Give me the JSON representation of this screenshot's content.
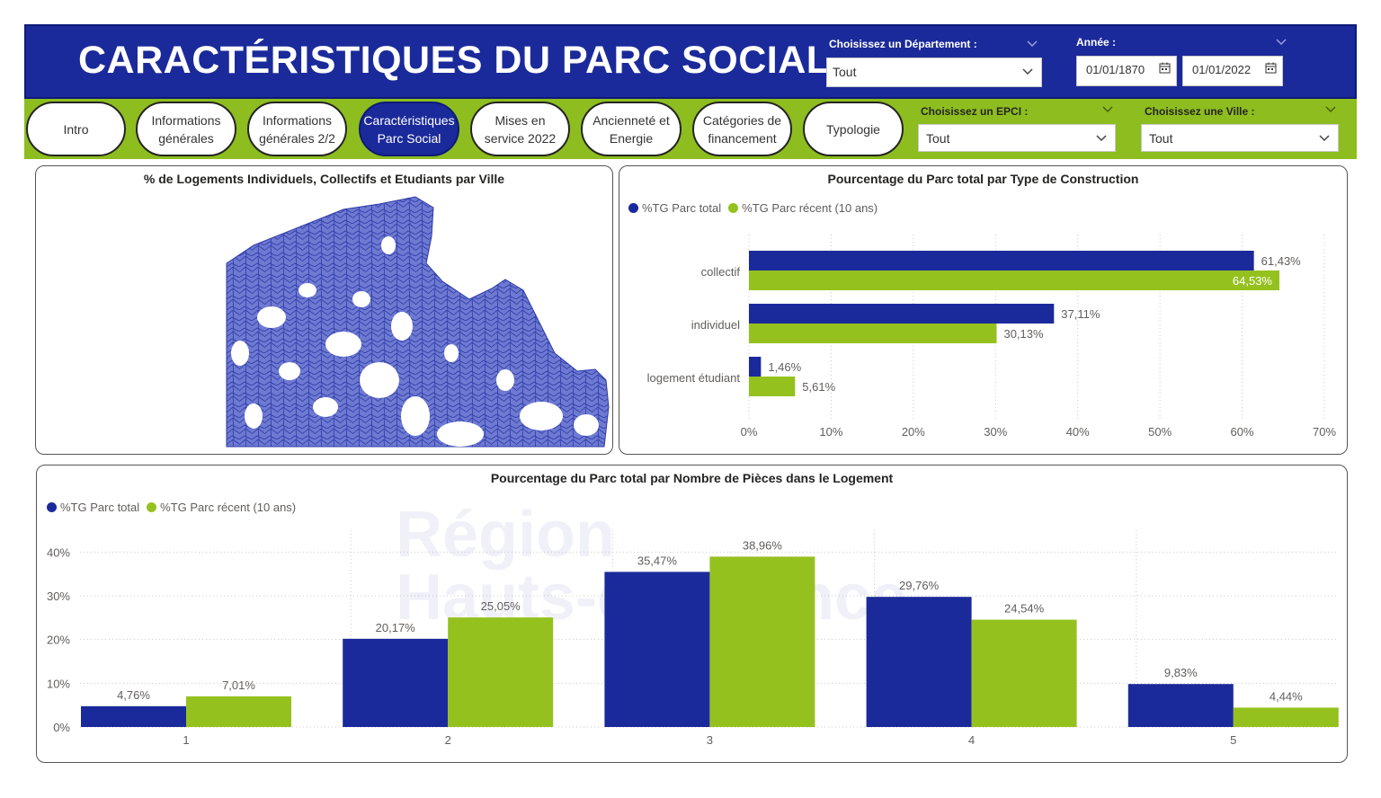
{
  "header": {
    "title": "CARACTÉRISTIQUES DU PARC SOCIAL",
    "departement_label": "Choisissez un Département :",
    "departement_value": "Tout",
    "annee_label": "Année :",
    "date_start": "01/01/1870",
    "date_end": "01/01/2022"
  },
  "nav": {
    "buttons": [
      {
        "label": "Intro"
      },
      {
        "label": "Informations générales"
      },
      {
        "label": "Informations générales 2/2"
      },
      {
        "label": "Caractéristiques Parc Social"
      },
      {
        "label": "Mises en service 2022"
      },
      {
        "label": "Ancienneté et Energie"
      },
      {
        "label": "Catégories de financement"
      },
      {
        "label": "Typologie"
      }
    ],
    "epci_label": "Choisissez un EPCI :",
    "epci_value": "Tout",
    "ville_label": "Choisissez une Ville :",
    "ville_value": "Tout"
  },
  "watermark": {
    "line1": "Région",
    "line2": "Hauts-de-France"
  },
  "colors": {
    "blue": "#1b2a9a",
    "green": "#95c11f",
    "header": "#1b2a9a",
    "nav": "#8dbd1e"
  },
  "map_panel": {
    "title": "% de Logements Individuels, Collectifs et Etudiants par Ville"
  },
  "chart_data": [
    {
      "type": "bar",
      "orientation": "horizontal",
      "title": "Pourcentage du Parc total par Type de Construction",
      "categories": [
        "collectif",
        "individuel",
        "logement étudiant"
      ],
      "series": [
        {
          "name": "%TG Parc total",
          "values": [
            61.43,
            37.11,
            1.46
          ],
          "labels": [
            "61,43%",
            "37,11%",
            "1,46%"
          ]
        },
        {
          "name": "%TG Parc récent (10 ans)",
          "values": [
            64.53,
            30.13,
            5.61
          ],
          "labels": [
            "64,53%",
            "30,13%",
            "5,61%"
          ]
        }
      ],
      "xlim": [
        0,
        70
      ],
      "ticks": [
        "0%",
        "10%",
        "20%",
        "30%",
        "40%",
        "50%",
        "60%",
        "70%"
      ],
      "legend": "top-left",
      "grid": true
    },
    {
      "type": "bar",
      "orientation": "vertical",
      "title": "Pourcentage du Parc total par Nombre de Pièces dans le Logement",
      "categories": [
        "1",
        "2",
        "3",
        "4",
        "5"
      ],
      "series": [
        {
          "name": "%TG Parc total",
          "values": [
            4.76,
            20.17,
            35.47,
            29.76,
            9.83
          ],
          "labels": [
            "4,76%",
            "20,17%",
            "35,47%",
            "29,76%",
            "9,83%"
          ]
        },
        {
          "name": "%TG Parc récent (10 ans)",
          "values": [
            7.01,
            25.05,
            38.96,
            24.54,
            4.44
          ],
          "labels": [
            "7,01%",
            "25,05%",
            "38,96%",
            "24,54%",
            "4,44%"
          ]
        }
      ],
      "ylim": [
        0,
        45
      ],
      "ticks": [
        "0%",
        "10%",
        "20%",
        "30%",
        "40%"
      ],
      "legend": "top-left",
      "grid": true
    }
  ]
}
